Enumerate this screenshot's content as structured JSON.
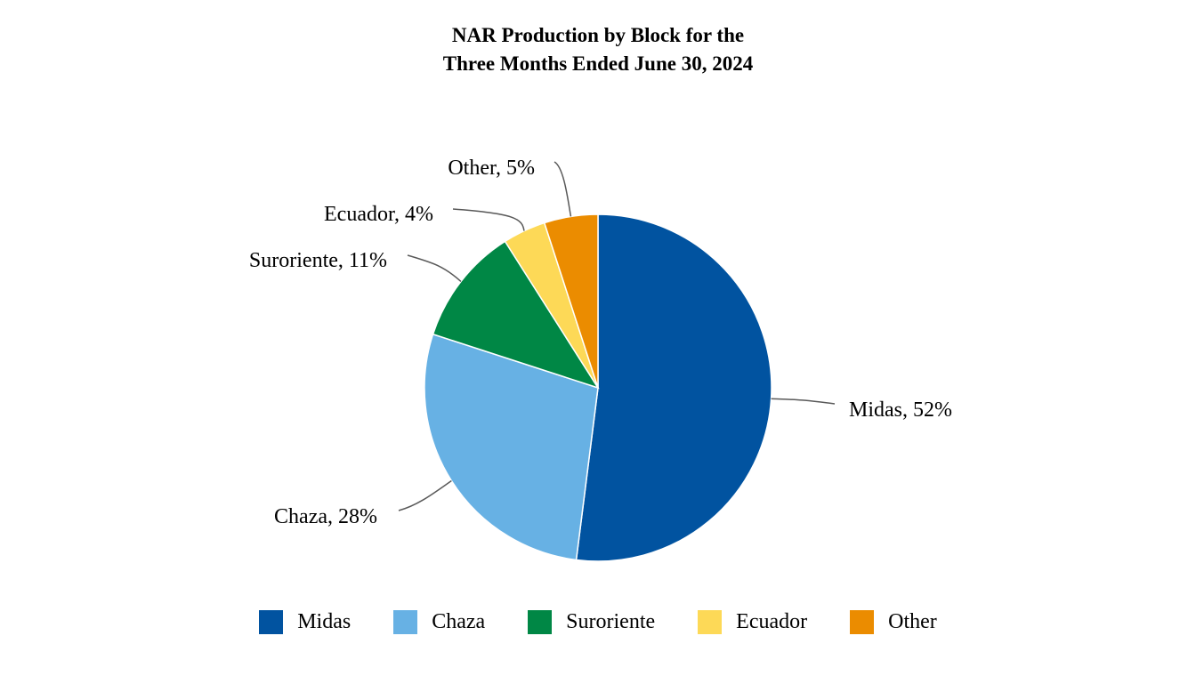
{
  "chart_data": {
    "type": "pie",
    "title_lines": [
      "NAR Production by Block for the",
      "Three Months Ended June 30, 2024"
    ],
    "unit": "%",
    "slices": [
      {
        "name": "Midas",
        "value": 52,
        "color": "#0153A0",
        "label": "Midas, 52%"
      },
      {
        "name": "Chaza",
        "value": 28,
        "color": "#67B1E4",
        "label": "Chaza, 28%"
      },
      {
        "name": "Suroriente",
        "value": 11,
        "color": "#008745",
        "label": "Suroriente, 11%"
      },
      {
        "name": "Ecuador",
        "value": 4,
        "color": "#FDD957",
        "label": "Ecuador, 4%"
      },
      {
        "name": "Other",
        "value": 5,
        "color": "#EB8C00",
        "label": "Other, 5%"
      }
    ],
    "start_angle": "12 o'clock",
    "direction": "clockwise",
    "legend_position": "bottom",
    "leader_line_color": "#595959"
  }
}
